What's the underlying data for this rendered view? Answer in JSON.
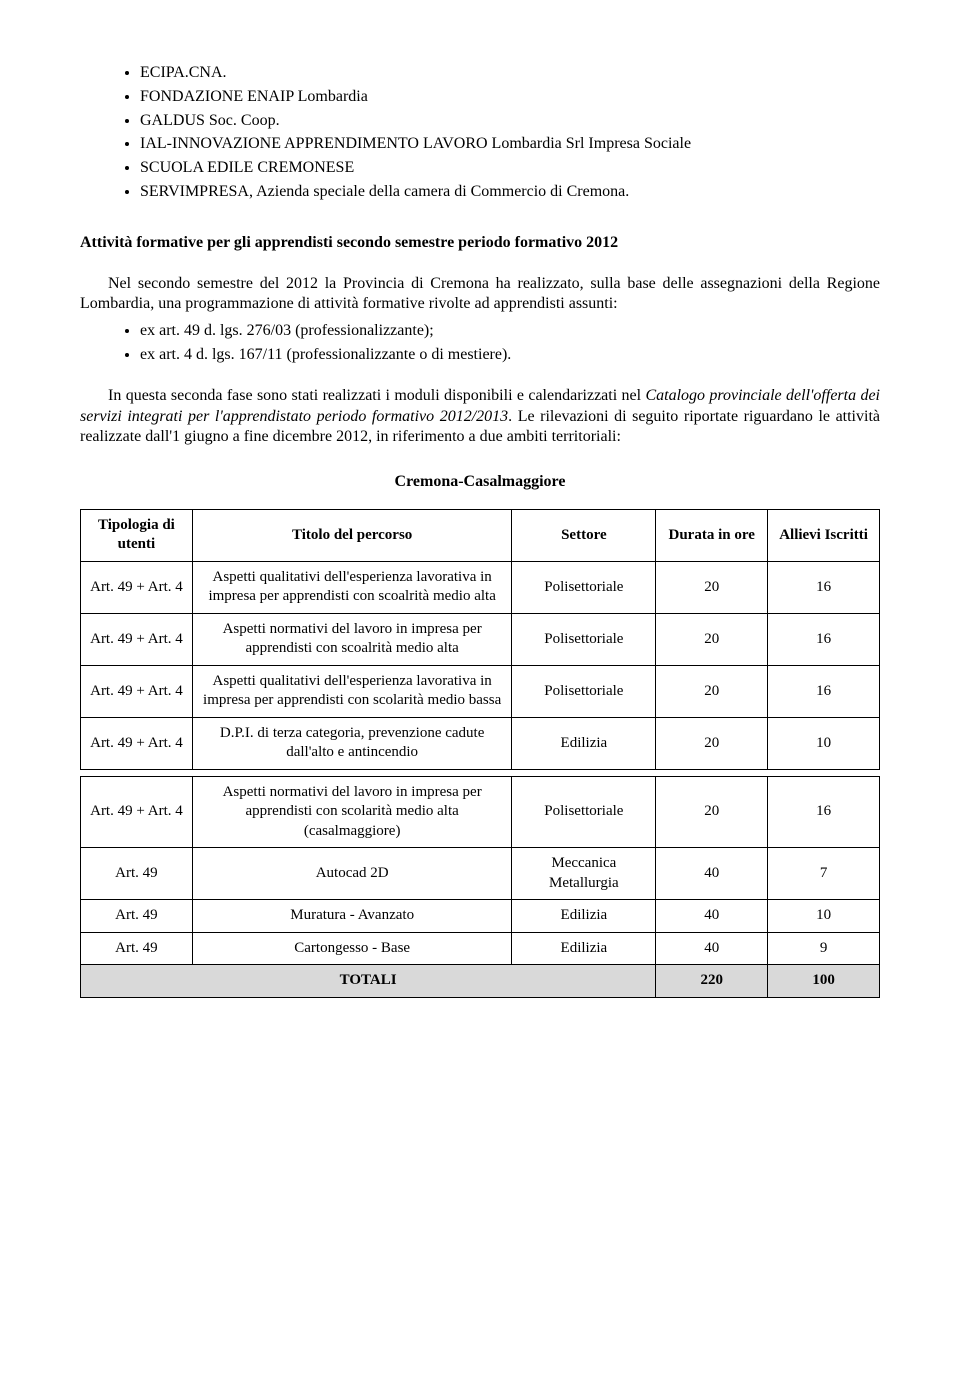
{
  "bullets": [
    "ECIPA.CNA.",
    "FONDAZIONE ENAIP Lombardia",
    "GALDUS Soc. Coop.",
    "IAL-INNOVAZIONE APPRENDIMENTO LAVORO Lombardia Srl Impresa Sociale",
    "SCUOLA EDILE CREMONESE",
    "SERVIMPRESA, Azienda speciale della camera di Commercio di Cremona."
  ],
  "heading": "Attività formative per gli apprendisti secondo semestre periodo formativo 2012",
  "para1_pre": "Nel secondo semestre del 2012 la Provincia di Cremona ha realizzato, sulla base delle assegnazioni della Regione Lombardia, una programmazione di attività formative rivolte ad apprendisti assunti:",
  "sub_bullets": [
    "ex art. 49 d. lgs. 276/03 (professionalizzante);",
    "ex art. 4 d. lgs. 167/11 (professionalizzante o di mestiere)."
  ],
  "para2_pre": "In questa seconda fase sono stati realizzati i moduli disponibili e calendarizzati nel ",
  "para2_em": "Catalogo provinciale dell'offerta dei servizi integrati per l'apprendistato periodo formativo 2012/2013",
  "para2_post": ". Le rilevazioni di seguito riportate riguardano le attività realizzate dall'1 giugno a fine dicembre 2012, in riferimento a due ambiti territoriali:",
  "subheading": "Cremona-Casalmaggiore",
  "table": {
    "headers": {
      "tipologia": "Tipologia di utenti",
      "titolo": "Titolo del percorso",
      "settore": "Settore",
      "durata": "Durata in ore",
      "allievi": "Allievi Iscritti"
    },
    "rows": [
      {
        "tipologia": "Art. 49 + Art. 4",
        "titolo": "Aspetti qualitativi dell'esperienza lavorativa in impresa per apprendisti con scoalrità medio alta",
        "settore": "Polisettoriale",
        "durata": "20",
        "allievi": "16"
      },
      {
        "tipologia": "Art. 49 + Art. 4",
        "titolo": "Aspetti normativi del lavoro in impresa per apprendisti con scoalrità medio alta",
        "settore": "Polisettoriale",
        "durata": "20",
        "allievi": "16"
      },
      {
        "tipologia": "Art. 49 + Art. 4",
        "titolo": "Aspetti qualitativi dell'esperienza lavorativa in impresa per apprendisti con scolarità medio bassa",
        "settore": "Polisettoriale",
        "durata": "20",
        "allievi": "16"
      },
      {
        "tipologia": "Art. 49 + Art. 4",
        "titolo": "D.P.I. di terza categoria, prevenzione cadute dall'alto e antincendio",
        "settore": "Edilizia",
        "durata": "20",
        "allievi": "10"
      }
    ],
    "rows2": [
      {
        "tipologia": "Art. 49 + Art. 4",
        "titolo": "Aspetti normativi del lavoro in impresa per apprendisti con scolarità medio alta (casalmaggiore)",
        "settore": "Polisettoriale",
        "durata": "20",
        "allievi": "16"
      },
      {
        "tipologia": "Art. 49",
        "titolo": "Autocad 2D",
        "settore": "Meccanica Metallurgia",
        "durata": "40",
        "allievi": "7"
      },
      {
        "tipologia": "Art. 49",
        "titolo": "Muratura - Avanzato",
        "settore": "Edilizia",
        "durata": "40",
        "allievi": "10"
      },
      {
        "tipologia": "Art. 49",
        "titolo": "Cartongesso - Base",
        "settore": "Edilizia",
        "durata": "40",
        "allievi": "9"
      }
    ],
    "totali": {
      "label": "TOTALI",
      "durata": "220",
      "allievi": "100"
    }
  }
}
